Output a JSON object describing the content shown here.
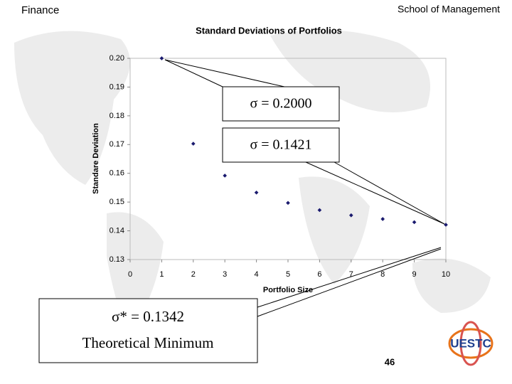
{
  "header": {
    "left": "Finance",
    "right": "School of Management"
  },
  "chart_data": {
    "type": "scatter",
    "title": "Standard Deviations of Portfolios",
    "x_label": "Portfolio Size",
    "y_label": "Standare Deviation",
    "x": [
      1,
      2,
      3,
      4,
      5,
      6,
      7,
      8,
      9,
      10
    ],
    "values": [
      0.2,
      0.1703,
      0.1592,
      0.1533,
      0.1497,
      0.1472,
      0.1454,
      0.1441,
      0.143,
      0.1421
    ],
    "color": "#1a1a6e",
    "xlim": [
      0,
      10
    ],
    "xticks": [
      0,
      1,
      2,
      3,
      4,
      5,
      6,
      7,
      8,
      9,
      10
    ],
    "ylim": [
      0.13,
      0.2
    ],
    "yticks": [
      0.13,
      0.14,
      0.15,
      0.16,
      0.17,
      0.18,
      0.19,
      {
        "value": 0.2,
        "label": "0.20"
      }
    ]
  },
  "callouts": [
    "σ = 0.2000",
    "σ = 0.1421",
    "σ* = 0.1342",
    "Theoretical Minimum"
  ],
  "logo": "UESTC",
  "page_number": "46"
}
